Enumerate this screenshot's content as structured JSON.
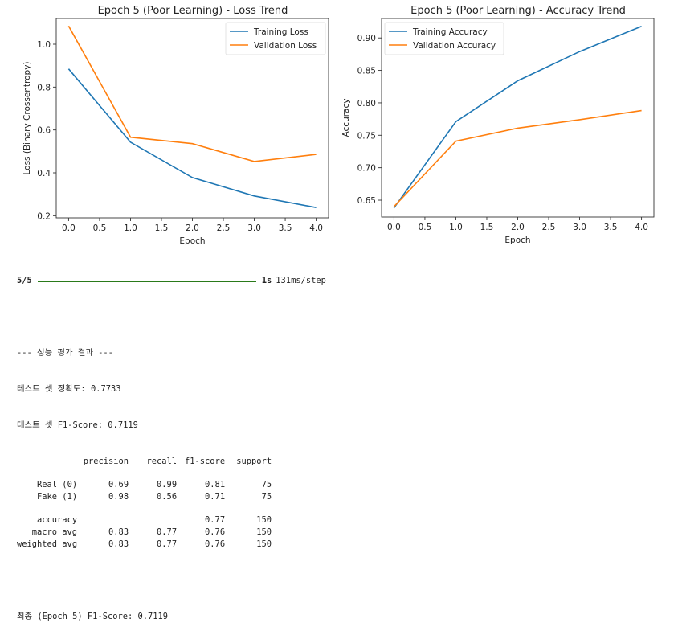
{
  "chart_data": [
    {
      "type": "line",
      "title": "Epoch 5 (Poor Learning) - Loss Trend",
      "xlabel": "Epoch",
      "ylabel": "Loss (Binary Crossentropy)",
      "x": [
        0,
        1,
        2,
        3,
        4
      ],
      "xlim": [
        -0.2,
        4.2
      ],
      "ylim": [
        0.19,
        1.12
      ],
      "xticks": [
        0.0,
        0.5,
        1.0,
        1.5,
        2.0,
        2.5,
        3.0,
        3.5,
        4.0
      ],
      "xtick_labels": [
        "0.0",
        "0.5",
        "1.0",
        "1.5",
        "2.0",
        "2.5",
        "3.0",
        "3.5",
        "4.0"
      ],
      "yticks": [
        0.2,
        0.4,
        0.6,
        0.8,
        1.0
      ],
      "ytick_labels": [
        "0.2",
        "0.4",
        "0.6",
        "0.8",
        "1.0"
      ],
      "grid": false,
      "legend": "top-right",
      "series": [
        {
          "name": "Training Loss",
          "color": "#1f77b4",
          "values": [
            0.885,
            0.543,
            0.378,
            0.292,
            0.238
          ]
        },
        {
          "name": "Validation Loss",
          "color": "#ff7f0e",
          "values": [
            1.085,
            0.566,
            0.536,
            0.453,
            0.486
          ]
        }
      ]
    },
    {
      "type": "line",
      "title": "Epoch 5 (Poor Learning) - Accuracy Trend",
      "xlabel": "Epoch",
      "ylabel": "Accuracy",
      "x": [
        0,
        1,
        2,
        3,
        4
      ],
      "xlim": [
        -0.2,
        4.2
      ],
      "ylim": [
        0.624,
        0.93
      ],
      "xticks": [
        0.0,
        0.5,
        1.0,
        1.5,
        2.0,
        2.5,
        3.0,
        3.5,
        4.0
      ],
      "xtick_labels": [
        "0.0",
        "0.5",
        "1.0",
        "1.5",
        "2.0",
        "2.5",
        "3.0",
        "3.5",
        "4.0"
      ],
      "yticks": [
        0.65,
        0.7,
        0.75,
        0.8,
        0.85,
        0.9
      ],
      "ytick_labels": [
        "0.65",
        "0.70",
        "0.75",
        "0.80",
        "0.85",
        "0.90"
      ],
      "grid": false,
      "legend": "top-left",
      "series": [
        {
          "name": "Training Accuracy",
          "color": "#1f77b4",
          "values": [
            0.638,
            0.771,
            0.834,
            0.879,
            0.918
          ]
        },
        {
          "name": "Validation Accuracy",
          "color": "#ff7f0e",
          "values": [
            0.64,
            0.741,
            0.761,
            0.774,
            0.788
          ]
        }
      ]
    }
  ],
  "console": {
    "progress": {
      "count": "5/5",
      "fraction": 1.0,
      "time": "1s",
      "rate": "131ms/step",
      "bar_color": "#2a7a1a"
    },
    "header": "--- 성능 평가 결과 ---",
    "accuracy_line": "테스트 셋 정확도: 0.7733",
    "f1_line": "테스트 셋 F1-Score: 0.7119",
    "report": {
      "columns": [
        "precision",
        "recall",
        "f1-score",
        "support"
      ],
      "class_rows": [
        {
          "label": "Real (0)",
          "precision": "0.69",
          "recall": "0.99",
          "f1": "0.81",
          "support": "75"
        },
        {
          "label": "Fake (1)",
          "precision": "0.98",
          "recall": "0.56",
          "f1": "0.71",
          "support": "75"
        }
      ],
      "accuracy_row": {
        "label": "accuracy",
        "f1": "0.77",
        "support": "150"
      },
      "avg_rows": [
        {
          "label": "macro avg",
          "precision": "0.83",
          "recall": "0.77",
          "f1": "0.76",
          "support": "150"
        },
        {
          "label": "weighted avg",
          "precision": "0.83",
          "recall": "0.77",
          "f1": "0.76",
          "support": "150"
        }
      ]
    },
    "final_line": "최종 (Epoch 5) F1-Score: 0.7119"
  }
}
